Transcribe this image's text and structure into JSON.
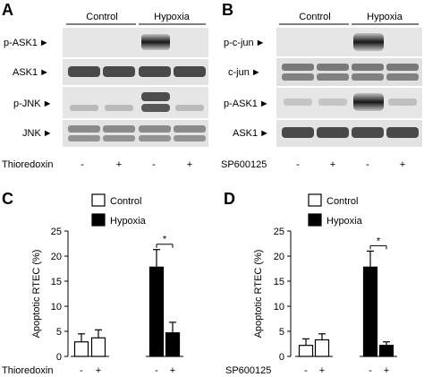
{
  "panels": {
    "a": {
      "letter": "A",
      "groups": [
        "Control",
        "Hypoxia"
      ],
      "rows": [
        "p-ASK1",
        "ASK1",
        "p-JNK",
        "JNK"
      ],
      "treatment": "Thioredoxin",
      "signs": [
        "-",
        "+",
        "-",
        "+"
      ]
    },
    "b": {
      "letter": "B",
      "groups": [
        "Control",
        "Hypoxia"
      ],
      "rows": [
        "p-c-jun",
        "c-jun",
        "p-ASK1",
        "ASK1"
      ],
      "treatment": "SP600125",
      "signs": [
        "-",
        "+",
        "-",
        "+"
      ]
    },
    "c": {
      "letter": "C"
    },
    "d": {
      "letter": "D"
    }
  },
  "blot_arrow": "►",
  "colors": {
    "control_fill": "#ffffff",
    "hypoxia_fill": "#000000",
    "blot_background": "#e6e6e6"
  },
  "chart_data": [
    {
      "type": "bar",
      "panel": "C",
      "ylabel": "Apoptotic RTEC (%)",
      "ylim": [
        0,
        25
      ],
      "yticks": [
        0,
        5,
        10,
        15,
        20,
        25
      ],
      "categories": [
        "-",
        "+"
      ],
      "x_treatment": "Thioredoxin",
      "legend": [
        "Control",
        "Hypoxia"
      ],
      "series": [
        {
          "name": "Control",
          "values": [
            2.9,
            3.7
          ],
          "errors": [
            1.6,
            1.6
          ]
        },
        {
          "name": "Hypoxia",
          "values": [
            17.8,
            4.7
          ],
          "errors": [
            3.5,
            2.1
          ]
        }
      ],
      "significance": "*"
    },
    {
      "type": "bar",
      "panel": "D",
      "ylabel": "Apoptotic RTEC (%)",
      "ylim": [
        0,
        25
      ],
      "yticks": [
        0,
        5,
        10,
        15,
        20,
        25
      ],
      "categories": [
        "-",
        "+"
      ],
      "x_treatment": "SP600125",
      "legend": [
        "Control",
        "Hypoxia"
      ],
      "series": [
        {
          "name": "Control",
          "values": [
            2.2,
            3.3
          ],
          "errors": [
            1.3,
            1.2
          ]
        },
        {
          "name": "Hypoxia",
          "values": [
            17.8,
            2.2
          ],
          "errors": [
            3.2,
            0.7
          ]
        }
      ],
      "significance": "*"
    }
  ]
}
